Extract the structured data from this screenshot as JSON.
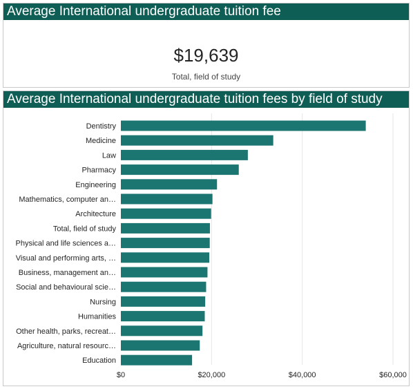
{
  "card": {
    "title": "Average International undergraduate tuition fee",
    "value": "$19,639",
    "label": "Total, field of study"
  },
  "chart_panel": {
    "title": "Average International undergraduate tuition fees by field of study"
  },
  "colors": {
    "header": "#0f5e55",
    "bar": "#1b7571",
    "grid": "#e6e6e6"
  },
  "chart_data": {
    "type": "bar",
    "orientation": "horizontal",
    "title": "Average International undergraduate tuition fees by field of study",
    "xlabel": "",
    "ylabel": "",
    "xlim": [
      0,
      60000
    ],
    "xticks": [
      0,
      20000,
      40000,
      60000
    ],
    "xtick_labels": [
      "$0",
      "$20,000",
      "$40,000",
      "$60,000"
    ],
    "grid": true,
    "categories": [
      "Dentistry",
      "Medicine",
      "Law",
      "Pharmacy",
      "Engineering",
      "Mathematics, computer an…",
      "Architecture",
      "Total, field of study",
      "Physical and life sciences a…",
      "Visual and performing arts, …",
      "Business, management an…",
      "Social and behavioural scie…",
      "Nursing",
      "Humanities",
      "Other health, parks, recreat…",
      "Agriculture, natural resourc…",
      "Education"
    ],
    "values": [
      54000,
      33600,
      28000,
      26000,
      21200,
      20200,
      19900,
      19639,
      19600,
      19500,
      19100,
      18800,
      18600,
      18500,
      18000,
      17400,
      15700
    ]
  }
}
